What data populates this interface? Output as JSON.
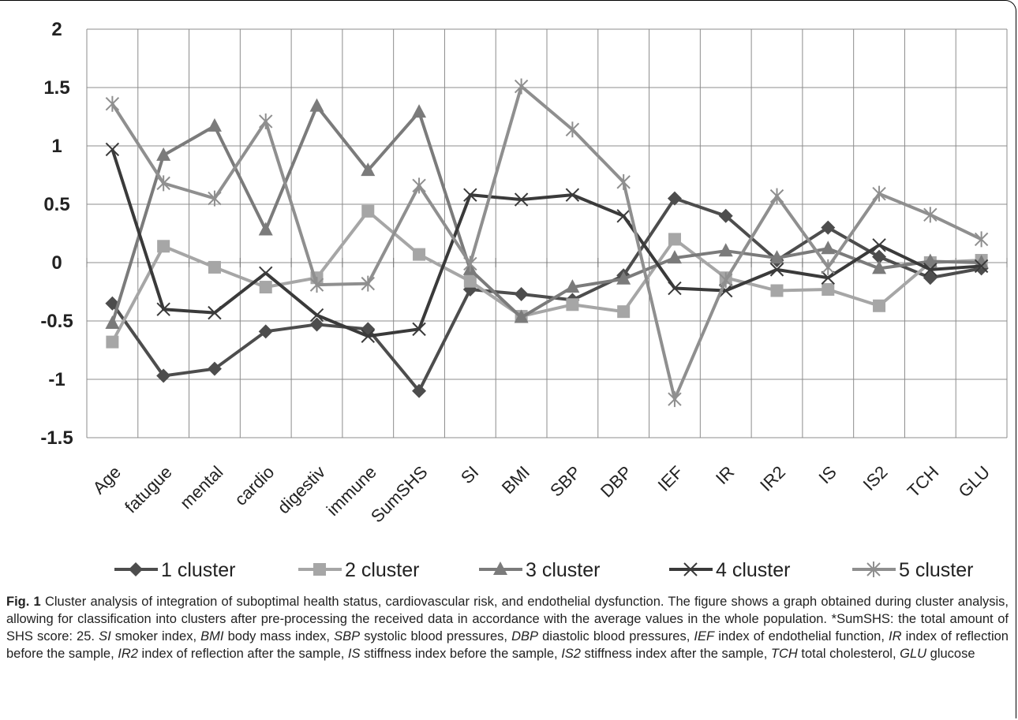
{
  "chart_data": {
    "type": "line",
    "categories": [
      "Age",
      "fatugue",
      "mental",
      "cardio",
      "digestiv",
      "immune",
      "SumSHS",
      "SI",
      "BMI",
      "SBP",
      "DBP",
      "IEF",
      "IR",
      "IR2",
      "IS",
      "IS2",
      "TCH",
      "GLU"
    ],
    "ylim": [
      -1.5,
      2
    ],
    "yticks": [
      "2",
      "1.5",
      "1",
      "0.5",
      "0",
      "-0.5",
      "-1",
      "-1.5"
    ],
    "grid": true,
    "legend_position": "bottom",
    "series": [
      {
        "name": "1 cluster",
        "color": "#4d4d4d",
        "marker": "diamond",
        "values": [
          -0.35,
          -0.97,
          -0.91,
          -0.59,
          -0.53,
          -0.57,
          -1.1,
          -0.23,
          -0.27,
          -0.32,
          -0.11,
          0.55,
          0.4,
          0.02,
          0.3,
          0.05,
          -0.13,
          -0.05
        ]
      },
      {
        "name": "2 cluster",
        "color": "#a6a6a6",
        "marker": "square",
        "values": [
          -0.68,
          0.14,
          -0.04,
          -0.21,
          -0.13,
          0.44,
          0.07,
          -0.16,
          -0.46,
          -0.36,
          -0.42,
          0.2,
          -0.13,
          -0.24,
          -0.23,
          -0.37,
          0.0,
          0.02
        ]
      },
      {
        "name": "3 cluster",
        "color": "#7b7b7b",
        "marker": "triangle",
        "values": [
          -0.52,
          0.92,
          1.17,
          0.28,
          1.34,
          0.79,
          1.29,
          -0.06,
          -0.47,
          -0.21,
          -0.14,
          0.04,
          0.1,
          0.04,
          0.12,
          -0.05,
          0.01,
          0.0
        ]
      },
      {
        "name": "4 cluster",
        "color": "#3a3a3a",
        "marker": "x",
        "values": [
          0.97,
          -0.4,
          -0.43,
          -0.09,
          -0.45,
          -0.63,
          -0.57,
          0.58,
          0.54,
          0.58,
          0.4,
          -0.22,
          -0.24,
          -0.06,
          -0.13,
          0.15,
          -0.06,
          -0.03
        ]
      },
      {
        "name": "5 cluster",
        "color": "#8f8f8f",
        "marker": "star",
        "values": [
          1.36,
          0.68,
          0.55,
          1.21,
          -0.19,
          -0.18,
          0.66,
          -0.01,
          1.51,
          1.14,
          0.69,
          -1.17,
          -0.15,
          0.57,
          -0.04,
          0.59,
          0.41,
          0.2
        ]
      }
    ]
  },
  "caption": {
    "fig_label": "Fig. 1",
    "text": "Cluster analysis of integration of suboptimal health status, cardiovascular risk, and endothelial dysfunction. The figure shows a graph obtained during cluster analysis, allowing for classification into clusters after pre-processing the received data in accordance with the average values in the whole population. *SumSHS: the total amount of SHS score: 25.",
    "abbreviations": [
      {
        "abbr": "SI",
        "def": "smoker index"
      },
      {
        "abbr": "BMI",
        "def": "body mass index"
      },
      {
        "abbr": "SBP",
        "def": "systolic blood pressures"
      },
      {
        "abbr": "DBP",
        "def": "diastolic blood pressures"
      },
      {
        "abbr": "IEF",
        "def": "index of endothelial function"
      },
      {
        "abbr": "IR",
        "def": "index of reflection before the sample"
      },
      {
        "abbr": "IR2",
        "def": "index of reflection after the sample"
      },
      {
        "abbr": "IS",
        "def": "stiffness index before the sample"
      },
      {
        "abbr": "IS2",
        "def": "stiffness index after the sample"
      },
      {
        "abbr": "TCH",
        "def": "total cholesterol"
      },
      {
        "abbr": "GLU",
        "def": "glucose"
      }
    ]
  }
}
